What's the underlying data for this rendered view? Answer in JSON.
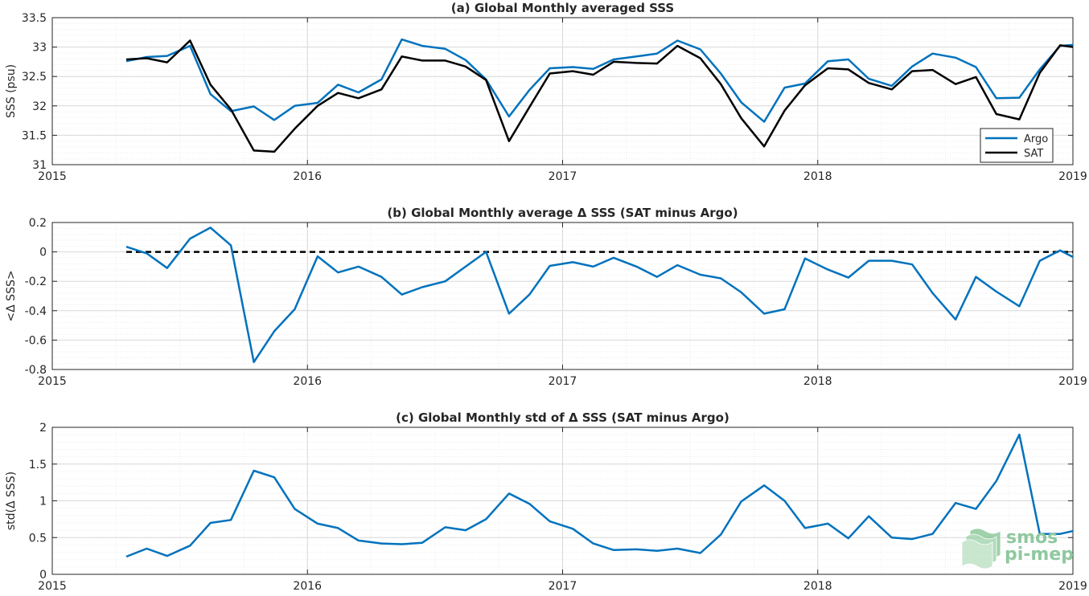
{
  "colors": {
    "argo": "#0072BD",
    "sat": "#000000",
    "grid": "#d9d9d9",
    "axis": "#262626",
    "logo": "#8fc89f"
  },
  "logo": {
    "line1": "smos",
    "line2": "pi-mep",
    "icon": "layered-wave-logo-icon"
  },
  "chart_data": [
    {
      "type": "line",
      "title": "(a) Global Monthly averaged SSS",
      "ylabel": "SSS (psu)",
      "xlim": [
        2015,
        2019
      ],
      "ylim": [
        31,
        33.5
      ],
      "xticks": [
        "2015",
        "2016",
        "2017",
        "2018",
        "2019"
      ],
      "yticks": [
        "31",
        "31.5",
        "32",
        "32.5",
        "33",
        "33.5"
      ],
      "grid": true,
      "minor_grid": true,
      "legend": "bottom-right",
      "x": [
        2015.29,
        2015.37,
        2015.45,
        2015.54,
        2015.62,
        2015.7,
        2015.79,
        2015.87,
        2015.95,
        2016.04,
        2016.12,
        2016.2,
        2016.29,
        2016.37,
        2016.45,
        2016.54,
        2016.62,
        2016.7,
        2016.79,
        2016.87,
        2016.95,
        2017.04,
        2017.12,
        2017.2,
        2017.29,
        2017.37,
        2017.45,
        2017.54,
        2017.62,
        2017.7,
        2017.79,
        2017.87,
        2017.95,
        2018.04,
        2018.12,
        2018.2,
        2018.29,
        2018.37,
        2018.45,
        2018.54,
        2018.62,
        2018.7,
        2018.79,
        2018.87,
        2018.95,
        2019.04
      ],
      "series": [
        {
          "name": "Argo",
          "values": [
            32.76,
            32.83,
            32.85,
            33.02,
            32.2,
            31.91,
            31.99,
            31.76,
            32.0,
            32.05,
            32.36,
            32.23,
            32.45,
            33.13,
            33.02,
            32.97,
            32.78,
            32.45,
            31.82,
            32.27,
            32.64,
            32.66,
            32.63,
            32.79,
            32.84,
            32.89,
            33.11,
            32.96,
            32.55,
            32.06,
            31.73,
            32.31,
            32.38,
            32.76,
            32.79,
            32.46,
            32.34,
            32.67,
            32.89,
            32.82,
            32.66,
            32.13,
            32.14,
            32.62,
            33.02,
            33.05
          ]
        },
        {
          "name": "SAT",
          "values": [
            32.79,
            32.81,
            32.74,
            33.11,
            32.36,
            31.94,
            31.24,
            31.22,
            31.61,
            32.0,
            32.22,
            32.13,
            32.28,
            32.84,
            32.77,
            32.77,
            32.67,
            32.44,
            31.4,
            31.98,
            32.55,
            32.59,
            32.53,
            32.75,
            32.73,
            32.72,
            33.02,
            32.81,
            32.37,
            31.79,
            31.31,
            31.92,
            32.35,
            32.64,
            32.62,
            32.39,
            32.28,
            32.59,
            32.61,
            32.37,
            32.49,
            31.86,
            31.77,
            32.56,
            33.03,
            32.98
          ]
        }
      ]
    },
    {
      "type": "line",
      "title": "(b) Global Monthly average Δ SSS (SAT minus Argo)",
      "ylabel": "<Δ SSS>",
      "xlim": [
        2015,
        2019
      ],
      "ylim": [
        -0.8,
        0.2
      ],
      "xticks": [
        "2015",
        "2016",
        "2017",
        "2018",
        "2019"
      ],
      "yticks": [
        "-0.8",
        "-0.6",
        "-0.4",
        "-0.2",
        "0",
        "0.2"
      ],
      "grid": true,
      "minor_grid": true,
      "reference_line": 0,
      "x": [
        2015.29,
        2015.37,
        2015.45,
        2015.54,
        2015.62,
        2015.7,
        2015.79,
        2015.87,
        2015.95,
        2016.04,
        2016.12,
        2016.2,
        2016.29,
        2016.37,
        2016.45,
        2016.54,
        2016.62,
        2016.7,
        2016.79,
        2016.87,
        2016.95,
        2017.04,
        2017.12,
        2017.2,
        2017.29,
        2017.37,
        2017.45,
        2017.54,
        2017.62,
        2017.7,
        2017.79,
        2017.87,
        2017.95,
        2018.04,
        2018.12,
        2018.2,
        2018.29,
        2018.37,
        2018.45,
        2018.54,
        2018.62,
        2018.7,
        2018.79,
        2018.87,
        2018.95,
        2019.04
      ],
      "series": [
        {
          "name": "Argo",
          "values": [
            0.035,
            -0.01,
            -0.11,
            0.09,
            0.165,
            0.045,
            -0.75,
            -0.54,
            -0.39,
            -0.03,
            -0.14,
            -0.1,
            -0.17,
            -0.29,
            -0.24,
            -0.2,
            -0.1,
            0.0,
            -0.42,
            -0.29,
            -0.095,
            -0.07,
            -0.1,
            -0.04,
            -0.1,
            -0.17,
            -0.09,
            -0.155,
            -0.18,
            -0.275,
            -0.42,
            -0.39,
            -0.045,
            -0.12,
            -0.175,
            -0.06,
            -0.06,
            -0.085,
            -0.28,
            -0.46,
            -0.17,
            -0.27,
            -0.37,
            -0.06,
            0.01,
            -0.07
          ]
        }
      ]
    },
    {
      "type": "line",
      "title": "(c) Global Monthly std of Δ SSS (SAT minus Argo)",
      "ylabel": "std(Δ SSS)",
      "xlim": [
        2015,
        2019
      ],
      "ylim": [
        0,
        2
      ],
      "xticks": [
        "2015",
        "2016",
        "2017",
        "2018",
        "2019"
      ],
      "yticks": [
        "0",
        "0.5",
        "1",
        "1.5",
        "2"
      ],
      "grid": true,
      "minor_grid": true,
      "x": [
        2015.29,
        2015.37,
        2015.45,
        2015.54,
        2015.62,
        2015.7,
        2015.79,
        2015.87,
        2015.95,
        2016.04,
        2016.12,
        2016.2,
        2016.29,
        2016.37,
        2016.45,
        2016.54,
        2016.62,
        2016.7,
        2016.79,
        2016.87,
        2016.95,
        2017.04,
        2017.12,
        2017.2,
        2017.29,
        2017.37,
        2017.45,
        2017.54,
        2017.62,
        2017.7,
        2017.79,
        2017.87,
        2017.95,
        2018.04,
        2018.12,
        2018.2,
        2018.29,
        2018.37,
        2018.45,
        2018.54,
        2018.62,
        2018.7,
        2018.79,
        2018.87,
        2018.95,
        2019.04
      ],
      "series": [
        {
          "name": "Argo",
          "values": [
            0.24,
            0.35,
            0.25,
            0.39,
            0.7,
            0.74,
            1.41,
            1.32,
            0.89,
            0.69,
            0.63,
            0.46,
            0.42,
            0.41,
            0.43,
            0.64,
            0.6,
            0.75,
            1.1,
            0.96,
            0.72,
            0.62,
            0.42,
            0.33,
            0.34,
            0.32,
            0.35,
            0.29,
            0.54,
            0.99,
            1.21,
            1.0,
            0.63,
            0.69,
            0.49,
            0.79,
            0.5,
            0.48,
            0.55,
            0.97,
            0.89,
            1.27,
            1.9,
            0.55,
            0.55,
            0.62
          ]
        }
      ]
    }
  ]
}
